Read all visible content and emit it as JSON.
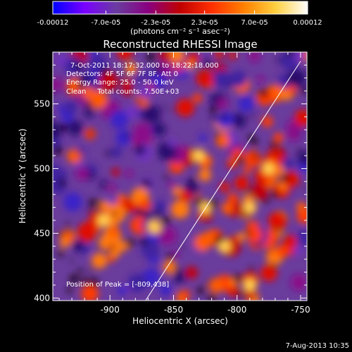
{
  "colorbar": {
    "tick_labels": [
      "-0.00012",
      "-7.0e-05",
      "-2.3e-05",
      "2.3e-05",
      "7.0e-05",
      "0.00012"
    ],
    "tick_values": [
      -0.00012,
      -7e-05,
      -2.3e-05,
      2.3e-05,
      7e-05,
      0.00012
    ],
    "units": "(photons cm⁻² s⁻¹ asec⁻²)",
    "colors": [
      "#0000ff",
      "#7a00ff",
      "#6a3ca0",
      "#8a0080",
      "#c00000",
      "#ff3000",
      "#ff8000",
      "#ffd040",
      "#ffffff"
    ]
  },
  "chart_data": {
    "type": "heatmap",
    "title": "Reconstructed RHESSI Image",
    "xlabel": "Heliocentric X (arcsec)",
    "ylabel": "Heliocentric Y (arcsec)",
    "xlim": [
      -945,
      -745
    ],
    "ylim": [
      398,
      590
    ],
    "x_ticks": [
      -900,
      -850,
      -800,
      -750
    ],
    "y_ticks": [
      400,
      450,
      500,
      550
    ],
    "x_tick_labels": [
      "-900",
      "-850",
      "-800",
      "-750"
    ],
    "y_tick_labels": [
      "400",
      "450",
      "500",
      "550"
    ],
    "peak_position": [
      -809,
      438
    ],
    "limb_line": [
      [
        -872,
        398
      ],
      [
        -750,
        583
      ]
    ],
    "annotations": [
      "7-Oct-2011 18:17:32.000 to 18:22:18.000",
      "Detectors: 4F 5F 6F 7F 8F, Att 0",
      "Energy Range: 25.0 - 50.0 keV",
      "Clean     Total counts: 7.50E+03",
      "Position of Peak = [-809,438]"
    ]
  },
  "footer": {
    "date": "7-Aug-2013 10:35"
  }
}
